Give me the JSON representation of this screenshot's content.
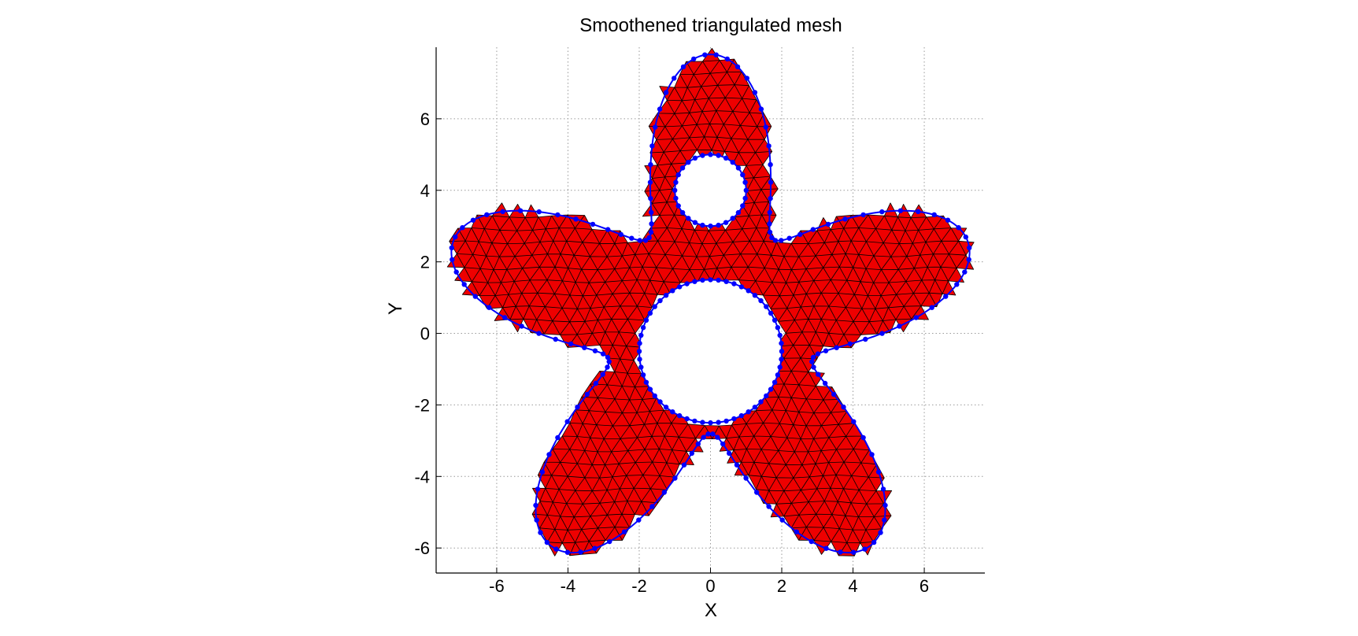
{
  "chart_data": {
    "type": "scatter",
    "title": "Smoothened triangulated mesh",
    "xlabel": "X",
    "ylabel": "Y",
    "xlim": [
      -7.7,
      7.7
    ],
    "ylim": [
      -6.7,
      8.0
    ],
    "xticks": [
      -6,
      -4,
      -2,
      0,
      2,
      4,
      6
    ],
    "yticks": [
      -6,
      -4,
      -2,
      0,
      2,
      4,
      6
    ],
    "grid": true,
    "colors": {
      "fill": "#ee0000",
      "mesh": "#000000",
      "nodes": "#0000ff",
      "grid": "#9a9a9a"
    },
    "shape": {
      "outer_boundary": "five-lobed star with rounded petals, lobe tips near (0,8), (7.6,2.2), (4.7,-6.5), (-4.7,-6.5), (-7.6,2.2)",
      "holes": [
        {
          "center": [
            0,
            4
          ],
          "radius": 1.0
        },
        {
          "center": [
            0,
            -0.5
          ],
          "radius": 2.0
        }
      ]
    }
  }
}
